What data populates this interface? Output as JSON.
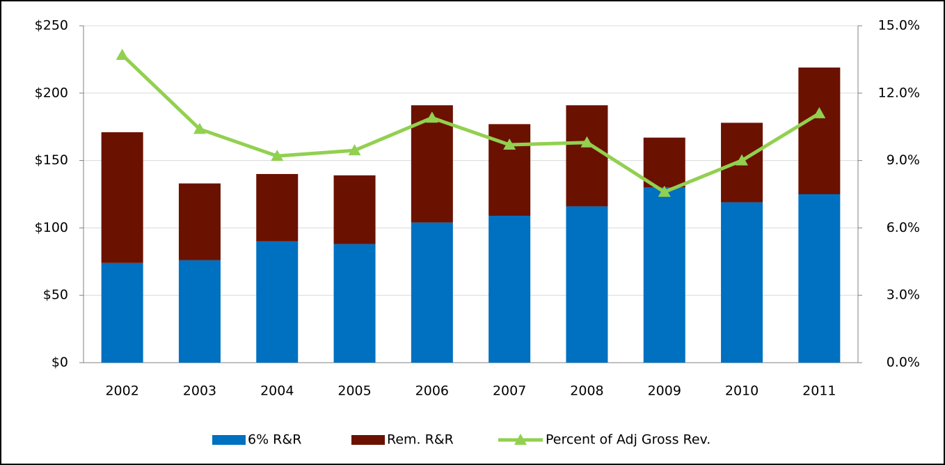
{
  "chart_data": {
    "type": "bar",
    "categories": [
      "2002",
      "2003",
      "2004",
      "2005",
      "2006",
      "2007",
      "2008",
      "2009",
      "2010",
      "2011"
    ],
    "series": [
      {
        "name": "6% R&R",
        "color": "#0070c0",
        "type": "bar",
        "values": [
          74,
          76,
          90,
          88,
          104,
          109,
          116,
          130,
          119,
          125
        ]
      },
      {
        "name": "Rem. R&R",
        "color": "#6b1100",
        "type": "bar",
        "values": [
          97,
          57,
          50,
          51,
          87,
          68,
          75,
          37,
          59,
          94
        ]
      },
      {
        "name": "Percent of Adj Gross Rev.",
        "color": "#92d050",
        "type": "line",
        "axis": "y2",
        "values": [
          13.7,
          10.4,
          9.2,
          9.45,
          10.9,
          9.7,
          9.8,
          7.6,
          9.0,
          11.1
        ]
      }
    ],
    "ylim": [
      0,
      250
    ],
    "yticks": [
      {
        "value": 0,
        "label": "$0"
      },
      {
        "value": 50,
        "label": "$50"
      },
      {
        "value": 100,
        "label": "$100"
      },
      {
        "value": 150,
        "label": "$150"
      },
      {
        "value": 200,
        "label": "$200"
      },
      {
        "value": 250,
        "label": "$250"
      }
    ],
    "y2lim": [
      0,
      15
    ],
    "y2ticks": [
      {
        "value": 0,
        "label": "0.0%"
      },
      {
        "value": 3,
        "label": "3.0%"
      },
      {
        "value": 6,
        "label": "6.0%"
      },
      {
        "value": 9,
        "label": "9.0%"
      },
      {
        "value": 12,
        "label": "12.0%"
      },
      {
        "value": 15,
        "label": "15.0%"
      }
    ],
    "grid": true,
    "legend": "bottom"
  }
}
